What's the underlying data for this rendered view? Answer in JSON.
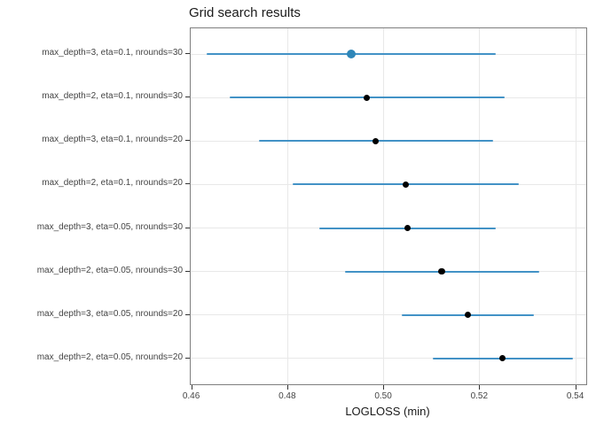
{
  "chart_data": {
    "type": "scatter",
    "subtype": "dotplot-with-errorbars",
    "title": "Grid search results",
    "xlabel": "LOGLOSS (min)",
    "ylabel": "",
    "xlim": [
      0.4598,
      0.5422
    ],
    "x_ticks": [
      0.46,
      0.48,
      0.5,
      0.52,
      0.54
    ],
    "x_tick_labels": [
      "0.46",
      "0.48",
      "0.50",
      "0.52",
      "0.54"
    ],
    "grid": true,
    "legend": false,
    "points": [
      {
        "label": "max_depth=3, eta=0.1, nrounds=30",
        "value": 0.4933,
        "low": 0.4632,
        "high": 0.5233,
        "highlight": true
      },
      {
        "label": "max_depth=2, eta=0.1, nrounds=30",
        "value": 0.4965,
        "low": 0.468,
        "high": 0.5252,
        "highlight": false
      },
      {
        "label": "max_depth=3, eta=0.1, nrounds=20",
        "value": 0.4983,
        "low": 0.4741,
        "high": 0.5228,
        "highlight": false
      },
      {
        "label": "max_depth=2, eta=0.1, nrounds=20",
        "value": 0.5046,
        "low": 0.481,
        "high": 0.5282,
        "highlight": false
      },
      {
        "label": "max_depth=3, eta=0.05, nrounds=30",
        "value": 0.505,
        "low": 0.4865,
        "high": 0.5234,
        "highlight": false
      },
      {
        "label": "max_depth=2, eta=0.05, nrounds=30",
        "value": 0.5121,
        "low": 0.492,
        "high": 0.5324,
        "highlight": false
      },
      {
        "label": "max_depth=3, eta=0.05, nrounds=20",
        "value": 0.5175,
        "low": 0.5038,
        "high": 0.5313,
        "highlight": false
      },
      {
        "label": "max_depth=2, eta=0.05, nrounds=20",
        "value": 0.5247,
        "low": 0.5103,
        "high": 0.5394,
        "highlight": false
      }
    ]
  },
  "colors": {
    "errorbar": "#4292c6",
    "dot": "#000000",
    "highlight_dot": "#2e86b8",
    "grid": "#e8e8e8",
    "panel_border": "#7f7f7f",
    "axis_text": "#444444",
    "tick_mark": "#333333",
    "title_text": "#1a1a1a"
  }
}
